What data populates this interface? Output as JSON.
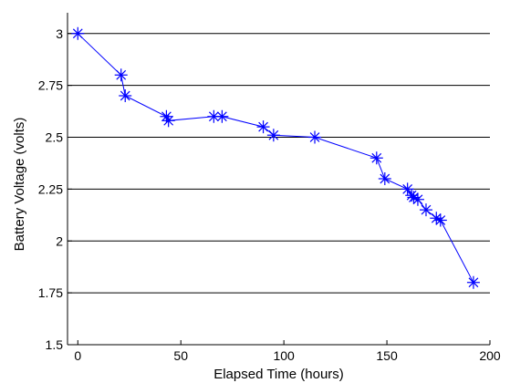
{
  "chart_data": {
    "type": "line",
    "title": "",
    "xlabel": "Elapsed Time (hours)",
    "ylabel": "Battery Voltage (volts)",
    "xlim": [
      -5,
      200
    ],
    "ylim": [
      1.5,
      3.1
    ],
    "xticks": [
      0,
      50,
      100,
      150,
      200
    ],
    "xtick_labels": [
      "0",
      "50",
      "100",
      "150",
      "200"
    ],
    "yticks": [
      1.5,
      1.75,
      2,
      2.25,
      2.5,
      2.75,
      3
    ],
    "ytick_labels": [
      "1.5",
      "1.75",
      "2",
      "2.25",
      "2.5",
      "2.75",
      "3"
    ],
    "grid": "horizontal",
    "legend": "none",
    "series": [
      {
        "color": "#0000ff",
        "marker": "asterisk",
        "points": [
          {
            "x": 0,
            "y": 3.0
          },
          {
            "x": 21,
            "y": 2.8
          },
          {
            "x": 23,
            "y": 2.7
          },
          {
            "x": 43,
            "y": 2.6
          },
          {
            "x": 44,
            "y": 2.58
          },
          {
            "x": 66,
            "y": 2.6
          },
          {
            "x": 70,
            "y": 2.6
          },
          {
            "x": 90,
            "y": 2.55
          },
          {
            "x": 95,
            "y": 2.51
          },
          {
            "x": 115,
            "y": 2.5
          },
          {
            "x": 145,
            "y": 2.4
          },
          {
            "x": 149,
            "y": 2.3
          },
          {
            "x": 160,
            "y": 2.25
          },
          {
            "x": 162,
            "y": 2.22
          },
          {
            "x": 163,
            "y": 2.21
          },
          {
            "x": 165,
            "y": 2.2
          },
          {
            "x": 169,
            "y": 2.15
          },
          {
            "x": 174,
            "y": 2.11
          },
          {
            "x": 176,
            "y": 2.1
          },
          {
            "x": 192,
            "y": 1.8
          }
        ]
      }
    ]
  }
}
